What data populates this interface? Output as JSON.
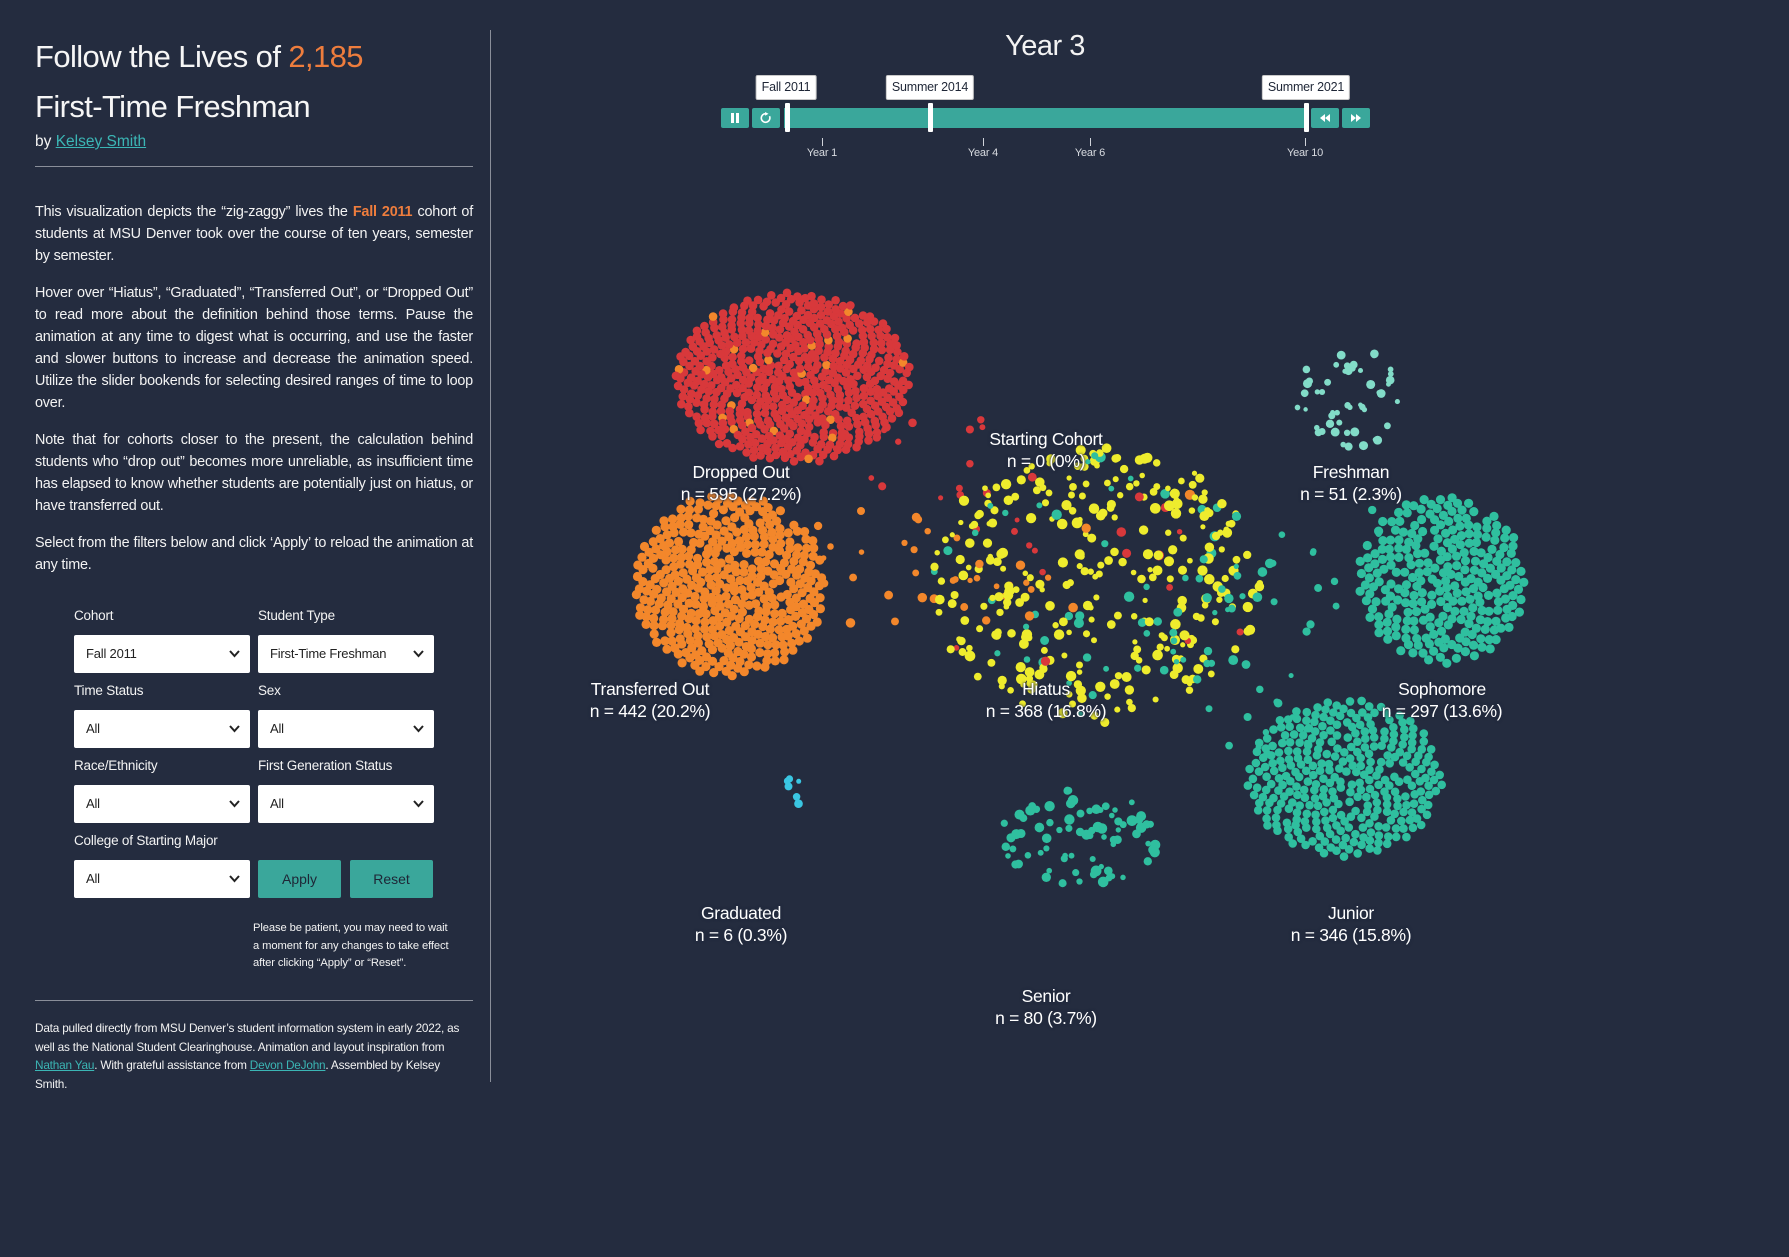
{
  "sidebar": {
    "title": {
      "pre": "Follow the Lives of ",
      "count": "2,185",
      "line2": "First-Time Freshman"
    },
    "byline": {
      "prefix": "by ",
      "author": "Kelsey Smith"
    },
    "paragraphs": [
      {
        "pre": "This visualization depicts the “zig-zaggy” lives the ",
        "highlight": "Fall 2011",
        "post": " cohort of students at MSU Denver took over the course of ten years, semester by semester."
      },
      {
        "text": "Hover over “Hiatus”, “Graduated”, “Transferred Out”, or “Dropped Out” to read more about the definition behind those terms. Pause the animation at any time to digest what is occurring, and use the faster and slower buttons to increase and decrease the animation speed. Utilize the slider bookends for selecting desired ranges of time to loop over."
      },
      {
        "text": "Note that for cohorts closer to the present, the calculation behind students who “drop out” becomes more unreliable, as insufficient time has elapsed to know whether students are potentially just on hiatus, or have transferred out."
      },
      {
        "text": "Select from the filters below and click ‘Apply’ to reload the animation at any time."
      }
    ],
    "filters": [
      {
        "label": "Cohort",
        "value": "Fall 2011"
      },
      {
        "label": "Student Type",
        "value": "First-Time Freshman"
      },
      {
        "label": "Time Status",
        "value": "All"
      },
      {
        "label": "Sex",
        "value": "All"
      },
      {
        "label": "Race/Ethnicity",
        "value": "All"
      },
      {
        "label": "First Generation Status",
        "value": "All"
      },
      {
        "label": "College of Starting Major",
        "value": "All"
      }
    ],
    "buttons": {
      "apply": "Apply",
      "reset": "Reset"
    },
    "note": "Please be patient, you may need to wait a moment for any changes to take effect after clicking “Apply” or “Reset”.",
    "footer": {
      "text1": "Data pulled directly from MSU Denver’s student information system in early 2022, as well as the National Student Clearinghouse. Animation and layout inspiration from ",
      "link1": "Nathan Yau",
      "text2": ". With grateful assistance from ",
      "link2": "Devon DeJohn",
      "text3": ". Assembled by Kelsey Smith."
    }
  },
  "timeline": {
    "handles": [
      "Fall 2011",
      "Summer 2014",
      "Summer 2021"
    ],
    "ticks": [
      "Year 1",
      "Year 4",
      "Year 6",
      "Year 10"
    ],
    "icons": [
      "pause-icon",
      "reset-icon",
      "rewind-icon",
      "fast-forward-icon"
    ]
  },
  "chart_data": {
    "type": "scatter",
    "title": "Year 3",
    "categories": [
      "Starting Cohort",
      "Dropped Out",
      "Freshman",
      "Transferred Out",
      "Hiatus",
      "Sophomore",
      "Graduated",
      "Junior",
      "Senior"
    ],
    "values": [
      0,
      595,
      51,
      442,
      368,
      297,
      6,
      346,
      80
    ],
    "value_labels": [
      "n = 0 (0%)",
      "n = 595 (27.2%)",
      "n = 51 (2.3%)",
      "n = 442 (20.2%)",
      "n = 368 (16.8%)",
      "n = 297 (13.6%)",
      "n = 6 (0.3%)",
      "n = 346 (15.8%)",
      "n = 80 (3.7%)"
    ],
    "colors": [
      "#e8e6e0",
      "#d8383b",
      "#82dcc8",
      "#f3872b",
      "#eeec2d",
      "#2fbf9f",
      "#3ac6e2",
      "#2fbf9f",
      "#2fbf9f"
    ]
  }
}
